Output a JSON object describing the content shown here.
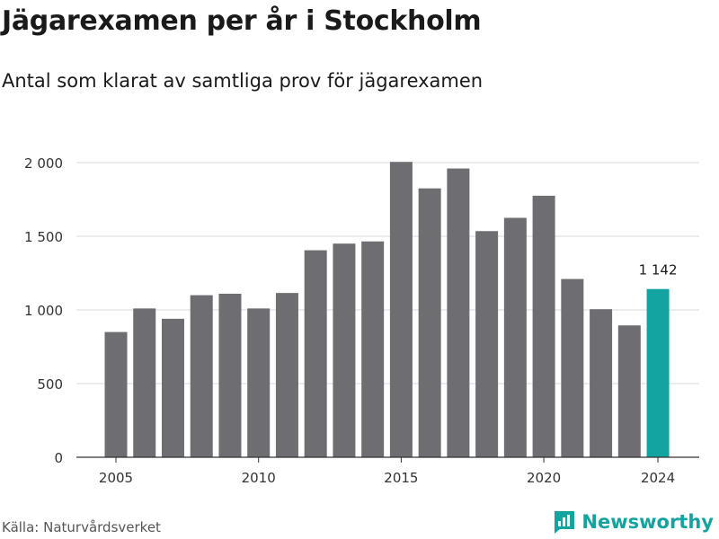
{
  "title": "Jägarexamen per år i Stockholm",
  "subtitle": "Antal som klarat av samtliga prov för jägarexamen",
  "source": "Källa: Naturvårdsverket",
  "brand": {
    "name": "Newsworthy",
    "icon": "newsworthy-logo-icon",
    "color": "#13a3a0"
  },
  "chart_data": {
    "type": "bar",
    "x": [
      2005,
      2006,
      2007,
      2008,
      2009,
      2010,
      2011,
      2012,
      2013,
      2014,
      2015,
      2016,
      2017,
      2018,
      2019,
      2020,
      2021,
      2022,
      2023,
      2024
    ],
    "values": [
      850,
      1010,
      940,
      1100,
      1110,
      1010,
      1115,
      1405,
      1450,
      1465,
      2005,
      1825,
      1960,
      1535,
      1625,
      1775,
      1210,
      1005,
      895,
      1142
    ],
    "x_ticks": [
      "2005",
      "2010",
      "2015",
      "2020",
      "2024"
    ],
    "y_ticks": [
      "0",
      "500",
      "1 000",
      "1 500",
      "2 000"
    ],
    "ylim": [
      0,
      2000
    ],
    "grid": true,
    "bar_color": "#6e6d72",
    "highlight_color": "#13a3a0",
    "highlight_index": 19,
    "highlight_label": "1 142"
  }
}
